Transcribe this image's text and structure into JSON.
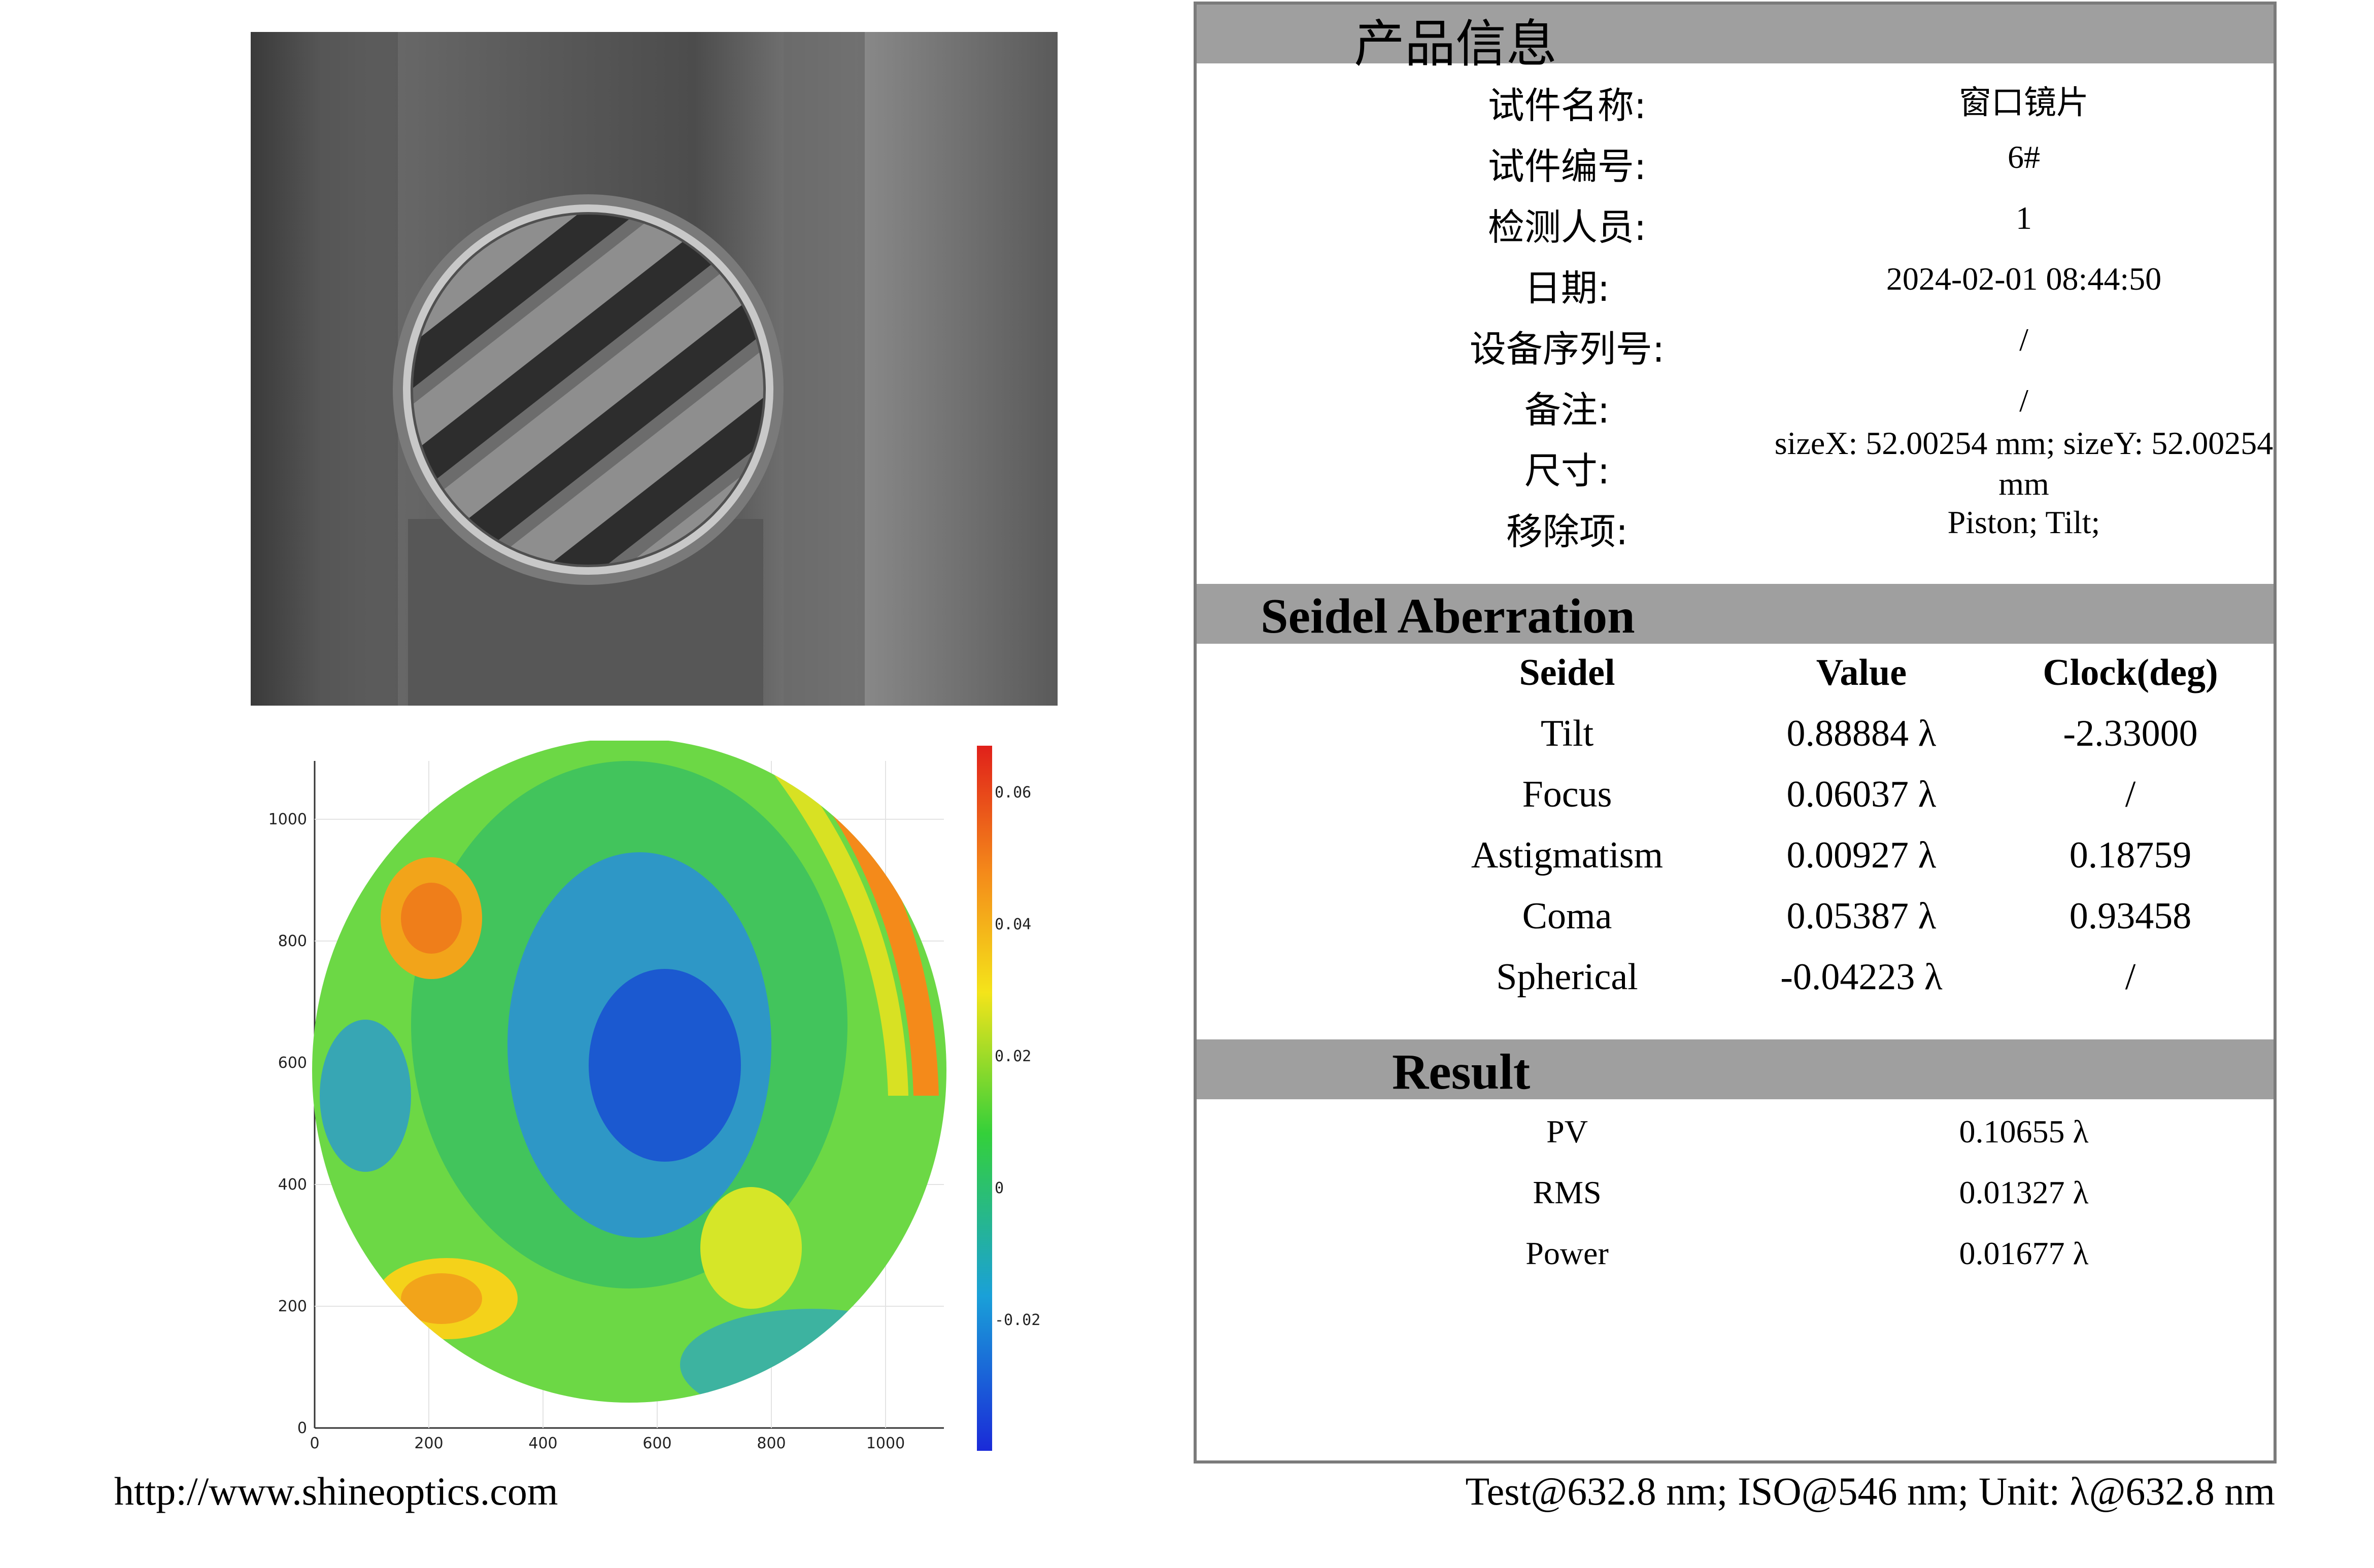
{
  "product_info": {
    "title": "产品信息",
    "rows": [
      {
        "label": "试件名称:",
        "value": "窗口镜片"
      },
      {
        "label": "试件编号:",
        "value": "6#"
      },
      {
        "label": "检测人员:",
        "value": "1"
      },
      {
        "label": "日期:",
        "value": "2024-02-01 08:44:50"
      },
      {
        "label": "设备序列号:",
        "value": "/"
      },
      {
        "label": "备注:",
        "value": "/"
      },
      {
        "label": "尺寸:",
        "value": "sizeX: 52.00254 mm; sizeY: 52.00254",
        "value2": "mm"
      },
      {
        "label": "移除项:",
        "value": "Piston; Tilt;"
      }
    ]
  },
  "seidel": {
    "title": "Seidel Aberration",
    "headers": [
      "Seidel",
      "Value",
      "Clock(deg)"
    ],
    "rows": [
      {
        "name": "Tilt",
        "value": "0.88884 λ",
        "clock": "-2.33000"
      },
      {
        "name": "Focus",
        "value": "0.06037 λ",
        "clock": "/"
      },
      {
        "name": "Astigmatism",
        "value": "0.00927 λ",
        "clock": "0.18759"
      },
      {
        "name": "Coma",
        "value": "0.05387 λ",
        "clock": "0.93458"
      },
      {
        "name": "Spherical",
        "value": "-0.04223 λ",
        "clock": "/"
      }
    ]
  },
  "result": {
    "title": "Result",
    "rows": [
      {
        "name": "PV",
        "value": "0.10655 λ"
      },
      {
        "name": "RMS",
        "value": "0.01327 λ"
      },
      {
        "name": "Power",
        "value": "0.01677 λ"
      }
    ]
  },
  "footer": {
    "url": "http://www.shineoptics.com",
    "units": "Test@632.8 nm; ISO@546 nm; Unit: λ@632.8 nm"
  },
  "heatmap": {
    "x_ticks": [
      "0",
      "200",
      "400",
      "600",
      "800",
      "1000"
    ],
    "y_ticks": [
      "0",
      "200",
      "400",
      "600",
      "800",
      "1000"
    ],
    "colorbar_ticks": [
      "0.06",
      "0.04",
      "0.02",
      "0",
      "-0.02"
    ]
  },
  "colors": {
    "band": "#9f9f9f",
    "border": "#7b7b7b"
  }
}
